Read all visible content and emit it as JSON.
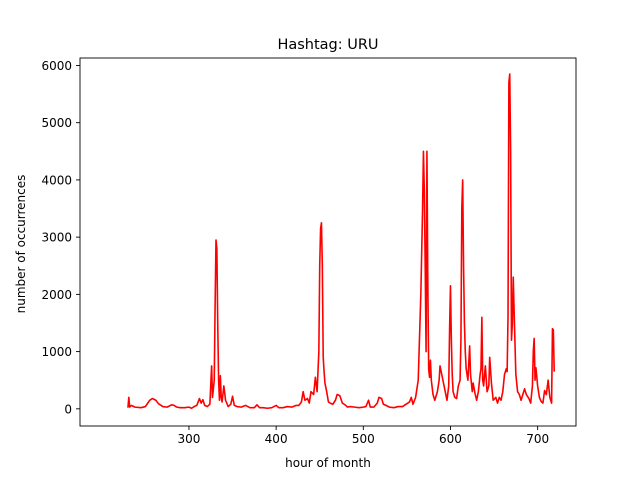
{
  "chart_data": {
    "type": "line",
    "title": "Hashtag: URU",
    "xlabel": "hour of month",
    "ylabel": "number of occurrences",
    "xlim": [
      175,
      744
    ],
    "ylim": [
      -300,
      6130
    ],
    "xticks": [
      300,
      400,
      500,
      600,
      700
    ],
    "yticks": [
      0,
      1000,
      2000,
      3000,
      4000,
      5000,
      6000
    ],
    "grid": false,
    "legend": "none",
    "series": [
      {
        "color": "#ff0000",
        "points": [
          [
            230,
            20
          ],
          [
            231,
            200
          ],
          [
            232,
            30
          ],
          [
            234,
            60
          ],
          [
            238,
            30
          ],
          [
            245,
            20
          ],
          [
            250,
            40
          ],
          [
            255,
            150
          ],
          [
            258,
            180
          ],
          [
            262,
            150
          ],
          [
            265,
            90
          ],
          [
            270,
            40
          ],
          [
            275,
            30
          ],
          [
            280,
            70
          ],
          [
            283,
            60
          ],
          [
            286,
            30
          ],
          [
            290,
            20
          ],
          [
            295,
            20
          ],
          [
            300,
            30
          ],
          [
            303,
            10
          ],
          [
            306,
            40
          ],
          [
            309,
            60
          ],
          [
            312,
            180
          ],
          [
            314,
            100
          ],
          [
            316,
            160
          ],
          [
            318,
            60
          ],
          [
            321,
            40
          ],
          [
            324,
            80
          ],
          [
            326,
            750
          ],
          [
            327,
            200
          ],
          [
            329,
            500
          ],
          [
            330,
            1800
          ],
          [
            331,
            2950
          ],
          [
            332,
            2800
          ],
          [
            333,
            1500
          ],
          [
            334,
            500
          ],
          [
            335,
            150
          ],
          [
            336,
            580
          ],
          [
            337,
            200
          ],
          [
            338,
            120
          ],
          [
            340,
            400
          ],
          [
            342,
            150
          ],
          [
            345,
            40
          ],
          [
            348,
            80
          ],
          [
            350,
            220
          ],
          [
            352,
            60
          ],
          [
            355,
            40
          ],
          [
            360,
            30
          ],
          [
            365,
            60
          ],
          [
            370,
            20
          ],
          [
            375,
            20
          ],
          [
            378,
            70
          ],
          [
            381,
            20
          ],
          [
            385,
            20
          ],
          [
            390,
            10
          ],
          [
            395,
            20
          ],
          [
            400,
            60
          ],
          [
            403,
            20
          ],
          [
            408,
            20
          ],
          [
            413,
            40
          ],
          [
            418,
            30
          ],
          [
            423,
            60
          ],
          [
            426,
            60
          ],
          [
            429,
            120
          ],
          [
            431,
            300
          ],
          [
            433,
            150
          ],
          [
            436,
            180
          ],
          [
            438,
            100
          ],
          [
            440,
            300
          ],
          [
            443,
            250
          ],
          [
            445,
            550
          ],
          [
            447,
            300
          ],
          [
            449,
            1000
          ],
          [
            450,
            2500
          ],
          [
            451,
            3150
          ],
          [
            452,
            3250
          ],
          [
            453,
            2500
          ],
          [
            454,
            900
          ],
          [
            455,
            650
          ],
          [
            456,
            450
          ],
          [
            458,
            300
          ],
          [
            460,
            120
          ],
          [
            462,
            100
          ],
          [
            465,
            80
          ],
          [
            468,
            150
          ],
          [
            470,
            250
          ],
          [
            473,
            230
          ],
          [
            476,
            100
          ],
          [
            479,
            70
          ],
          [
            482,
            30
          ],
          [
            485,
            40
          ],
          [
            490,
            30
          ],
          [
            495,
            20
          ],
          [
            500,
            30
          ],
          [
            503,
            40
          ],
          [
            506,
            150
          ],
          [
            508,
            30
          ],
          [
            512,
            30
          ],
          [
            516,
            100
          ],
          [
            518,
            200
          ],
          [
            521,
            180
          ],
          [
            523,
            80
          ],
          [
            526,
            60
          ],
          [
            530,
            30
          ],
          [
            535,
            20
          ],
          [
            540,
            40
          ],
          [
            545,
            40
          ],
          [
            550,
            90
          ],
          [
            553,
            120
          ],
          [
            555,
            200
          ],
          [
            557,
            80
          ],
          [
            560,
            200
          ],
          [
            563,
            500
          ],
          [
            566,
            2000
          ],
          [
            568,
            3500
          ],
          [
            569,
            4500
          ],
          [
            570,
            3800
          ],
          [
            571,
            2500
          ],
          [
            572,
            1000
          ],
          [
            573,
            4500
          ],
          [
            574,
            2200
          ],
          [
            575,
            700
          ],
          [
            576,
            550
          ],
          [
            577,
            850
          ],
          [
            578,
            500
          ],
          [
            580,
            250
          ],
          [
            582,
            150
          ],
          [
            585,
            300
          ],
          [
            587,
            500
          ],
          [
            588,
            750
          ],
          [
            590,
            600
          ],
          [
            592,
            450
          ],
          [
            594,
            300
          ],
          [
            596,
            150
          ],
          [
            598,
            400
          ],
          [
            599,
            1400
          ],
          [
            600,
            2150
          ],
          [
            601,
            1200
          ],
          [
            602,
            600
          ],
          [
            603,
            300
          ],
          [
            605,
            200
          ],
          [
            607,
            180
          ],
          [
            609,
            400
          ],
          [
            611,
            500
          ],
          [
            612,
            1200
          ],
          [
            613,
            3500
          ],
          [
            614,
            4000
          ],
          [
            615,
            2500
          ],
          [
            616,
            1500
          ],
          [
            617,
            1000
          ],
          [
            618,
            700
          ],
          [
            620,
            500
          ],
          [
            622,
            1100
          ],
          [
            623,
            600
          ],
          [
            625,
            300
          ],
          [
            626,
            450
          ],
          [
            628,
            280
          ],
          [
            630,
            150
          ],
          [
            632,
            300
          ],
          [
            634,
            600
          ],
          [
            635,
            700
          ],
          [
            636,
            1600
          ],
          [
            637,
            500
          ],
          [
            638,
            400
          ],
          [
            640,
            750
          ],
          [
            642,
            300
          ],
          [
            644,
            400
          ],
          [
            645,
            900
          ],
          [
            647,
            450
          ],
          [
            649,
            150
          ],
          [
            652,
            200
          ],
          [
            654,
            100
          ],
          [
            656,
            200
          ],
          [
            658,
            150
          ],
          [
            660,
            300
          ],
          [
            662,
            600
          ],
          [
            664,
            700
          ],
          [
            665,
            650
          ],
          [
            666,
            1600
          ],
          [
            667,
            5700
          ],
          [
            668,
            5850
          ],
          [
            669,
            4500
          ],
          [
            670,
            1200
          ],
          [
            671,
            1500
          ],
          [
            672,
            2300
          ],
          [
            673,
            1700
          ],
          [
            675,
            600
          ],
          [
            677,
            300
          ],
          [
            679,
            250
          ],
          [
            681,
            150
          ],
          [
            683,
            250
          ],
          [
            685,
            350
          ],
          [
            687,
            250
          ],
          [
            690,
            180
          ],
          [
            692,
            100
          ],
          [
            694,
            400
          ],
          [
            695,
            1000
          ],
          [
            696,
            1230
          ],
          [
            697,
            500
          ],
          [
            698,
            720
          ],
          [
            700,
            400
          ],
          [
            702,
            200
          ],
          [
            704,
            130
          ],
          [
            706,
            100
          ],
          [
            708,
            320
          ],
          [
            710,
            250
          ],
          [
            712,
            500
          ],
          [
            714,
            200
          ],
          [
            716,
            100
          ],
          [
            717,
            1400
          ],
          [
            718,
            1380
          ],
          [
            719,
            650
          ]
        ]
      }
    ]
  }
}
